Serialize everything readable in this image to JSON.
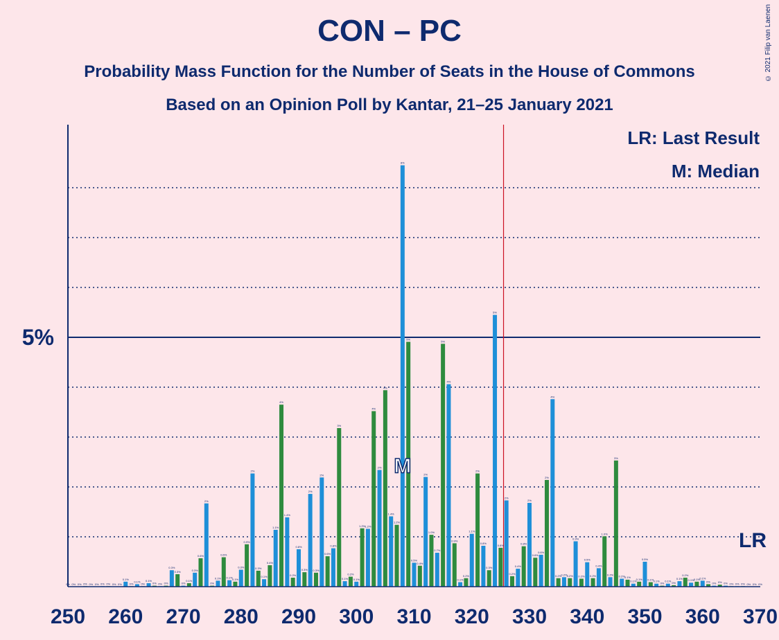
{
  "title": "CON – PC",
  "subtitle1": "Probability Mass Function for the Number of Seats in the House of Commons",
  "subtitle2": "Based on an Opinion Poll by Kantar, 21–25 January 2021",
  "copyright": "© 2021 Filip van Laenen",
  "legend": {
    "lr": "LR: Last Result",
    "m": "M: Median"
  },
  "colors": {
    "background": "#fde6ea",
    "blue": "#1e8fd8",
    "green": "#2e8b3e",
    "axis": "#0e2a6e",
    "last_result_line": "#cc1122"
  },
  "chart_data": {
    "type": "bar",
    "xlabel": "",
    "ylabel": "",
    "xlim": [
      250,
      370
    ],
    "ylim": [
      0,
      9
    ],
    "x_ticks": [
      250,
      260,
      270,
      280,
      290,
      300,
      310,
      320,
      330,
      340,
      350,
      360,
      370
    ],
    "y_tick_label": "5%",
    "y_tick_value": 5,
    "gridlines": [
      1,
      2,
      3,
      4,
      6,
      7,
      8
    ],
    "last_result": 326,
    "last_result_label": "LR",
    "median": 308,
    "median_label": "M",
    "seats": [
      250,
      251,
      252,
      253,
      254,
      255,
      256,
      257,
      258,
      259,
      260,
      261,
      262,
      263,
      264,
      265,
      266,
      267,
      268,
      269,
      270,
      271,
      272,
      273,
      274,
      275,
      276,
      277,
      278,
      279,
      280,
      281,
      282,
      283,
      284,
      285,
      286,
      287,
      288,
      289,
      290,
      291,
      292,
      293,
      294,
      295,
      296,
      297,
      298,
      299,
      300,
      301,
      302,
      303,
      304,
      305,
      306,
      307,
      308,
      309,
      310,
      311,
      312,
      313,
      314,
      315,
      316,
      317,
      318,
      319,
      320,
      321,
      322,
      323,
      324,
      325,
      326,
      327,
      328,
      329,
      330,
      331,
      332,
      333,
      334,
      335,
      336,
      337,
      338,
      339,
      340,
      341,
      342,
      343,
      344,
      345,
      346,
      347,
      348,
      349,
      350,
      351,
      352,
      353,
      354,
      355,
      356,
      357,
      358,
      359,
      360,
      361,
      362,
      363,
      364,
      365,
      366,
      367,
      368,
      369,
      370
    ],
    "values": [
      0,
      0,
      0,
      0.01,
      0,
      0,
      0.01,
      0.01,
      0,
      0,
      0.1,
      0.01,
      0.05,
      0.01,
      0.07,
      0.02,
      0.01,
      0.02,
      0.33,
      0.25,
      0.02,
      0.07,
      0.28,
      0.57,
      1.67,
      0.02,
      0.12,
      0.59,
      0.13,
      0.1,
      0.34,
      0.85,
      2.27,
      0.32,
      0.15,
      0.43,
      1.14,
      3.65,
      1.39,
      0.18,
      0.75,
      0.29,
      1.86,
      0.28,
      2.19,
      0.61,
      0.77,
      3.18,
      0.11,
      0.2,
      0.1,
      1.17,
      1.16,
      3.52,
      2.34,
      3.94,
      1.41,
      1.24,
      8.45,
      4.91,
      0.48,
      0.42,
      2.2,
      1.04,
      0.68,
      4.87,
      4.06,
      0.87,
      0.09,
      0.17,
      1.06,
      2.27,
      0.82,
      0.33,
      5.45,
      0.78,
      1.73,
      0.21,
      0.36,
      0.81,
      1.68,
      0.58,
      0.64,
      2.14,
      3.76,
      0.17,
      0.19,
      0.17,
      0.91,
      0.16,
      0.49,
      0.17,
      0.37,
      1.01,
      0.19,
      2.53,
      0.16,
      0.14,
      0.06,
      0.1,
      0.5,
      0.09,
      0.06,
      0.02,
      0.06,
      0.03,
      0.11,
      0.18,
      0.08,
      0.1,
      0.12,
      0.05,
      0.02,
      0.04,
      0.02,
      0.01,
      0.01,
      0.01,
      0,
      0,
      0
    ],
    "value_labels": [
      "0%",
      "0%",
      "0%",
      "0%",
      "0%",
      "0%",
      "0%",
      "0%",
      "0%",
      "0%",
      "0.1%",
      "0%",
      "0.1%",
      "0%",
      "0.1%",
      "0%",
      "0%",
      "0%",
      "0.3%",
      "0.3%",
      "0%",
      "0.1%",
      "0.3%",
      "0.6%",
      "2%",
      "0%",
      "0.1%",
      "0.6%",
      "0.1%",
      "0.1%",
      "0.3%",
      "0.9%",
      "2%",
      "0.3%",
      "0.1%",
      "0.4%",
      "1.1%",
      "4%",
      "1.4%",
      "0.2%",
      "0.8%",
      "0.3%",
      "2%",
      "0.3%",
      "2%",
      "0.6%",
      "0.8%",
      "3%",
      "0.1%",
      "0.2%",
      "0.1%",
      "1.2%",
      "1.2%",
      "4%",
      "2%",
      "4%",
      "1.4%",
      "1.2%",
      "8%",
      "5%",
      "0.5%",
      "0.4%",
      "2%",
      "1.0%",
      "0.7%",
      "5%",
      "4%",
      "0.9%",
      "0.1%",
      "0.2%",
      "1.1%",
      "2%",
      "0.8%",
      "0.3%",
      "5%",
      "0.8%",
      "2%",
      "0.2%",
      "0.4%",
      "0.8%",
      "2%",
      "0.6%",
      "0.6%",
      "2%",
      "4%",
      "0.2%",
      "0.2%",
      "0.2%",
      "0.9%",
      "0.2%",
      "0.5%",
      "0.2%",
      "0.4%",
      "1.0%",
      "0.2%",
      "3%",
      "0.2%",
      "0.1%",
      "0.1%",
      "0.1%",
      "0.5%",
      "0.1%",
      "0.1%",
      "0%",
      "0.1%",
      "0%",
      "0.1%",
      "0.2%",
      "0.1%",
      "0.1%",
      "0.1%",
      "0%",
      "0%",
      "0%",
      "0%",
      "0%",
      "0%",
      "0%",
      "0%",
      "0%",
      "0%"
    ]
  }
}
